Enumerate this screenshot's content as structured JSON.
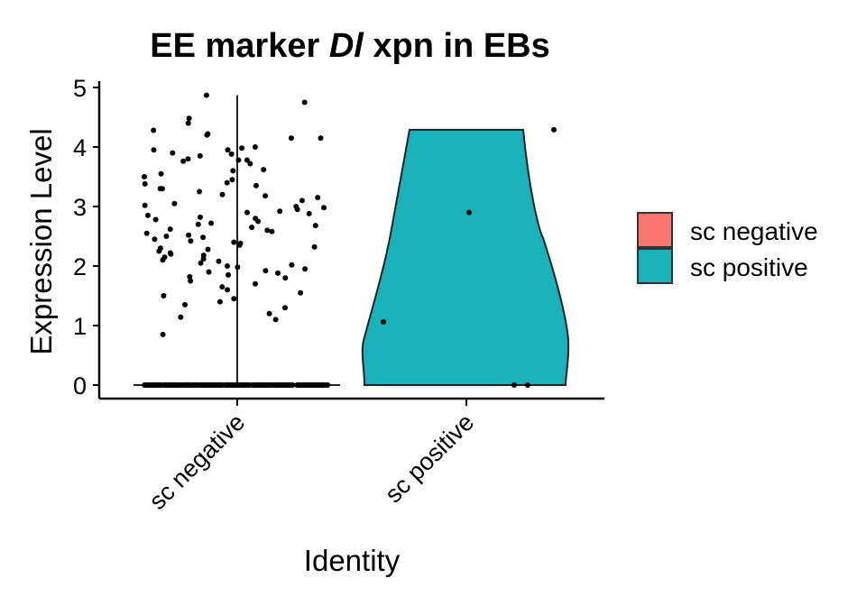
{
  "chart_data": {
    "type": "violin",
    "title_parts": [
      "EE marker ",
      "Dl",
      " xpn in EBs"
    ],
    "xlabel": "Identity",
    "ylabel": "Expression Level",
    "ylim": [
      -0.2,
      5.1
    ],
    "yticks": [
      0,
      1,
      2,
      3,
      4,
      5
    ],
    "categories": [
      "sc negative",
      "sc positive"
    ],
    "legend": {
      "position": "right",
      "entries": [
        {
          "label": "sc negative",
          "color": "#F8766D"
        },
        {
          "label": "sc positive",
          "color": "#19B2BA"
        }
      ]
    },
    "series": [
      {
        "name": "sc negative",
        "color": "#F8766D",
        "max": 4.87,
        "zero_count": 300,
        "points": [
          4.75,
          4.87,
          4.48,
          4.4,
          4.28,
          4.22,
          4.2,
          4.15,
          4.15,
          4.0,
          3.98,
          3.95,
          3.95,
          3.9,
          3.88,
          3.85,
          3.8,
          3.78,
          3.78,
          3.76,
          3.72,
          3.62,
          3.6,
          3.55,
          3.5,
          3.45,
          3.4,
          3.38,
          3.35,
          3.3,
          3.3,
          3.25,
          3.2,
          3.18,
          3.15,
          3.1,
          3.05,
          3.02,
          3.0,
          2.98,
          2.95,
          2.92,
          2.9,
          2.88,
          2.85,
          2.82,
          2.8,
          2.78,
          2.75,
          2.72,
          2.7,
          2.68,
          2.65,
          2.62,
          2.6,
          2.58,
          2.55,
          2.52,
          2.5,
          2.48,
          2.45,
          2.42,
          2.4,
          2.38,
          2.35,
          2.32,
          2.3,
          2.28,
          2.25,
          2.22,
          2.2,
          2.18,
          2.15,
          2.12,
          2.1,
          2.08,
          2.05,
          2.02,
          2.0,
          1.98,
          1.95,
          1.92,
          1.9,
          1.88,
          1.85,
          1.82,
          1.8,
          1.75,
          1.7,
          1.65,
          1.6,
          1.55,
          1.5,
          1.45,
          1.4,
          1.35,
          1.3,
          1.2,
          1.14,
          1.1,
          0.85
        ]
      },
      {
        "name": "sc positive",
        "color": "#19B2BA",
        "max": 4.29,
        "zero_count": 2,
        "points": [
          4.29,
          2.9,
          1.06,
          0.0,
          0.0
        ]
      }
    ]
  }
}
